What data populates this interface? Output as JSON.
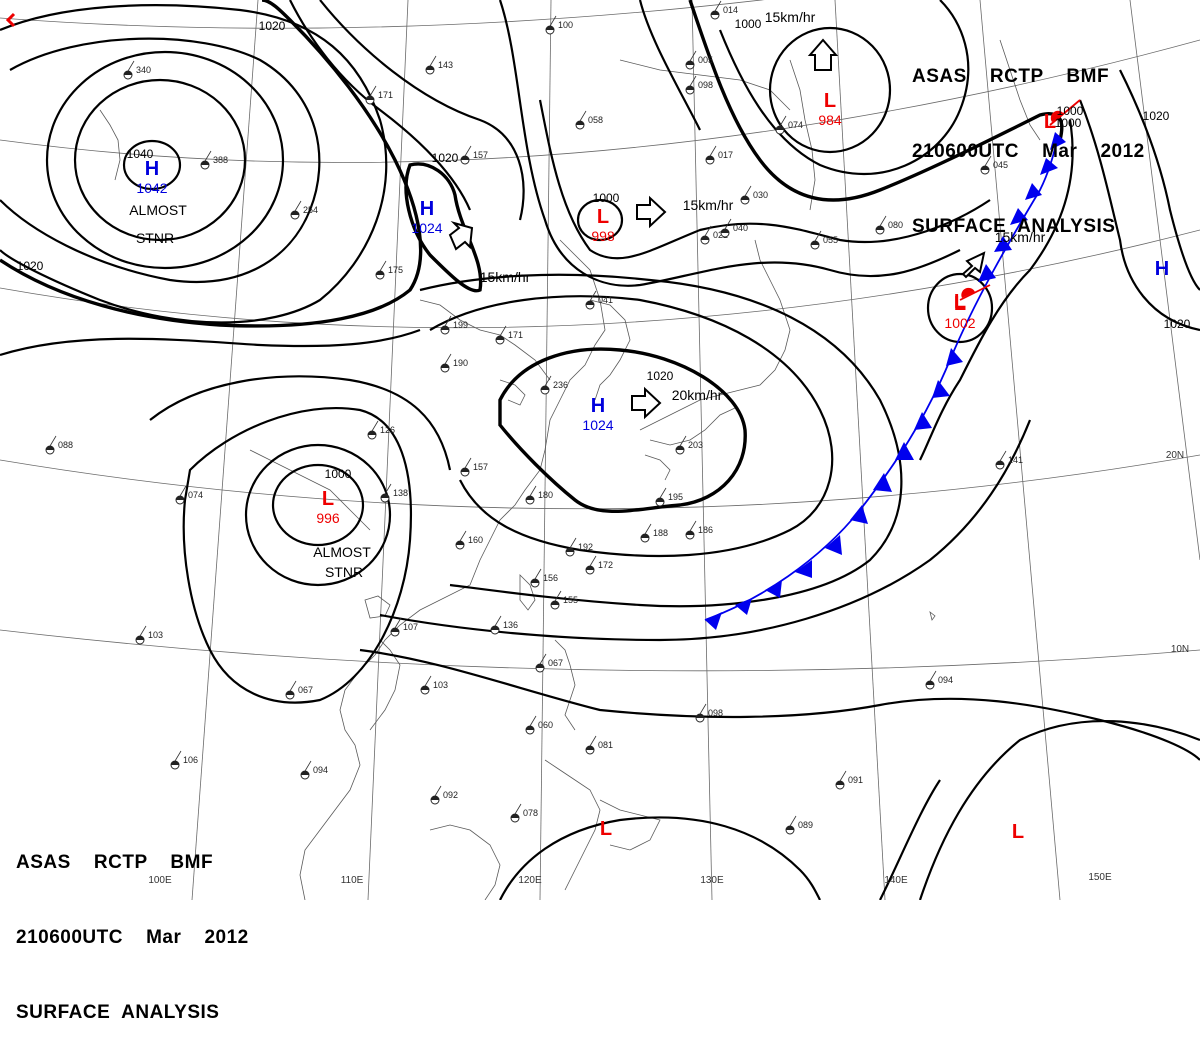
{
  "header_top": {
    "line1": "ASAS    RCTP    BMF",
    "line2": "210600UTC    Mar    2012",
    "line3": "SURFACE  ANALYSIS"
  },
  "header_bottom": {
    "line1": "ASAS    RCTP    BMF",
    "line2": "210600UTC    Mar    2012",
    "line3": "SURFACE  ANALYSIS"
  },
  "colors": {
    "high": "#0000dd",
    "low": "#ee0000",
    "isobar": "#000000",
    "front": "#0000ee",
    "grid": "#6a6a6a"
  },
  "pressure_systems": [
    {
      "type": "H",
      "value": "1042",
      "color": "#0000dd"
    },
    {
      "type": "H",
      "value": "1024",
      "color": "#0000dd"
    },
    {
      "type": "H",
      "value": "1024",
      "color": "#0000dd"
    },
    {
      "type": "H",
      "value": "",
      "color": "#0000dd"
    },
    {
      "type": "L",
      "value": "984",
      "color": "#ee0000"
    },
    {
      "type": "L",
      "value": "998",
      "color": "#ee0000"
    },
    {
      "type": "L",
      "value": "996",
      "color": "#ee0000"
    },
    {
      "type": "L",
      "value": "1002",
      "color": "#ee0000"
    },
    {
      "type": "L",
      "value": "",
      "color": "#ee0000"
    },
    {
      "type": "L",
      "value": "",
      "color": "#ee0000"
    },
    {
      "type": "L",
      "value": "",
      "color": "#ee0000"
    },
    {
      "type": "L",
      "value": "",
      "color": "#ee0000"
    }
  ],
  "isobar_labels": [
    "1040",
    "1020",
    "1020",
    "1020",
    "1000",
    "1000",
    "1000",
    "1020",
    "1020",
    "1000",
    "1020",
    "1000"
  ],
  "motions": [
    "15km/hr",
    "15km/hr",
    "15km/hr",
    "20km/hr",
    "15km/hr"
  ],
  "annotations": [
    "ALMOST",
    "STNR",
    "ALMOST",
    "STNR"
  ],
  "longitudes": [
    "100E",
    "110E",
    "120E",
    "130E",
    "140E",
    "150E"
  ],
  "latitudes": [
    "20N",
    "10N"
  ],
  "stations": [
    "340",
    "388",
    "254",
    "171",
    "143",
    "157",
    "100",
    "058",
    "005",
    "014",
    "098",
    "074",
    "175",
    "199",
    "171",
    "190",
    "236",
    "157",
    "126",
    "138",
    "180",
    "160",
    "192",
    "172",
    "156",
    "155",
    "136",
    "107",
    "103",
    "067",
    "106",
    "094",
    "092",
    "078",
    "081",
    "060",
    "067",
    "089",
    "098",
    "091",
    "094",
    "141",
    "030",
    "080",
    "055",
    "045",
    "088",
    "074",
    "103",
    "188",
    "186",
    "195",
    "203",
    "022",
    "017",
    "040",
    "041"
  ]
}
